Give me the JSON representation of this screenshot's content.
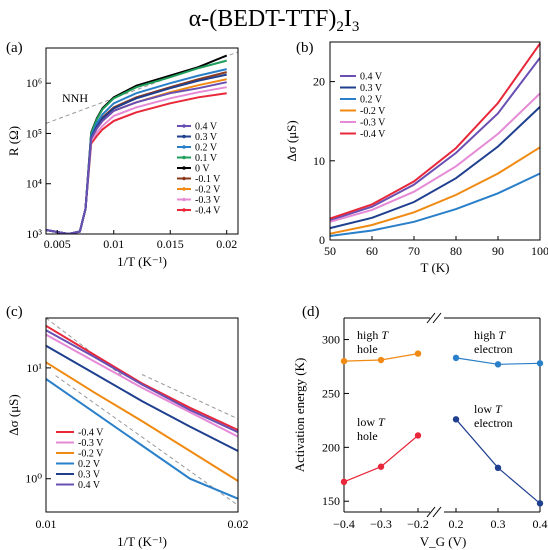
{
  "figure": {
    "title_main": "α-(BEDT-TTF)",
    "title_sub": "2",
    "title_tail": "I",
    "title_sub2": "3"
  },
  "colors": {
    "0.4 V": "#6a4fb3",
    "0.3 V": "#1f3f8f",
    "0.2 V": "#2a7fc9",
    "0.1 V": "#1e9e5a",
    "0 V": "#000000",
    "-0.1 V": "#8b3a1f",
    "-0.2 V": "#f08a12",
    "-0.3 V": "#e68ad6",
    "-0.4 V": "#e8283a",
    "fit": "#999999"
  },
  "chart_data": [
    {
      "panel": "(a)",
      "type": "line",
      "xlabel": "1/T (K⁻¹)",
      "ylabel": "R (Ω)",
      "xlim": [
        0.004,
        0.021
      ],
      "ylim_log10": [
        3,
        6.7
      ],
      "y_scale": "log",
      "xticks": [
        "0.005",
        "0.01",
        "0.015",
        "0.02"
      ],
      "yticks": [
        "10³",
        "10⁴",
        "10⁵",
        "10⁶"
      ],
      "legend": [
        "0.4 V",
        "0.3 V",
        "0.2 V",
        "0.1 V",
        "0 V",
        "-0.1 V",
        "-0.2 V",
        "-0.3 V",
        "-0.4 V"
      ],
      "annotation": "NNH",
      "series": [
        {
          "name": "0.4 V",
          "x": [
            0.004,
            0.006,
            0.007,
            0.0075,
            0.008,
            0.0085,
            0.009,
            0.01,
            0.012,
            0.015,
            0.0175,
            0.02
          ],
          "y_log10": [
            3.08,
            3.0,
            3.05,
            3.5,
            4.9,
            5.1,
            5.25,
            5.45,
            5.62,
            5.8,
            5.9,
            6.02
          ]
        },
        {
          "name": "0.3 V",
          "x": [
            0.004,
            0.006,
            0.007,
            0.0075,
            0.008,
            0.0085,
            0.009,
            0.01,
            0.012,
            0.015,
            0.0175,
            0.02
          ],
          "y_log10": [
            3.08,
            3.0,
            3.05,
            3.5,
            4.92,
            5.14,
            5.3,
            5.5,
            5.7,
            5.9,
            6.05,
            6.17
          ]
        },
        {
          "name": "0.2 V",
          "x": [
            0.004,
            0.006,
            0.007,
            0.0075,
            0.008,
            0.0085,
            0.009,
            0.01,
            0.012,
            0.015,
            0.0175,
            0.02
          ],
          "y_log10": [
            3.08,
            3.0,
            3.05,
            3.5,
            4.95,
            5.2,
            5.38,
            5.6,
            5.8,
            6.0,
            6.15,
            6.28
          ]
        },
        {
          "name": "0.1 V",
          "x": [
            0.004,
            0.006,
            0.007,
            0.0075,
            0.008,
            0.0085,
            0.009,
            0.01,
            0.012,
            0.015,
            0.0175,
            0.02
          ],
          "y_log10": [
            3.08,
            3.0,
            3.05,
            3.5,
            5.0,
            5.28,
            5.48,
            5.7,
            5.92,
            6.12,
            6.3,
            6.45
          ]
        },
        {
          "name": "0 V",
          "x": [
            0.004,
            0.006,
            0.007,
            0.0075,
            0.008,
            0.0085,
            0.009,
            0.01,
            0.012,
            0.015,
            0.0175,
            0.02
          ],
          "y_log10": [
            3.08,
            3.0,
            3.05,
            3.5,
            5.02,
            5.3,
            5.5,
            5.72,
            5.95,
            6.15,
            6.32,
            6.55
          ]
        },
        {
          "name": "-0.1 V",
          "x": [
            0.004,
            0.006,
            0.007,
            0.0075,
            0.008,
            0.0085,
            0.009,
            0.01,
            0.012,
            0.015,
            0.0175,
            0.02
          ],
          "y_log10": [
            3.08,
            3.0,
            3.05,
            3.5,
            4.95,
            5.18,
            5.32,
            5.52,
            5.72,
            5.92,
            6.08,
            6.22
          ]
        },
        {
          "name": "-0.2 V",
          "x": [
            0.004,
            0.006,
            0.007,
            0.0075,
            0.008,
            0.0085,
            0.009,
            0.01,
            0.012,
            0.015,
            0.0175,
            0.02
          ],
          "y_log10": [
            3.08,
            3.0,
            3.05,
            3.5,
            4.9,
            5.1,
            5.25,
            5.45,
            5.62,
            5.82,
            5.96,
            6.08
          ]
        },
        {
          "name": "-0.3 V",
          "x": [
            0.004,
            0.006,
            0.007,
            0.0075,
            0.008,
            0.0085,
            0.009,
            0.01,
            0.012,
            0.015,
            0.0175,
            0.02
          ],
          "y_log10": [
            3.08,
            3.0,
            3.05,
            3.5,
            4.85,
            5.02,
            5.15,
            5.35,
            5.52,
            5.7,
            5.82,
            5.92
          ]
        },
        {
          "name": "-0.4 V",
          "x": [
            0.004,
            0.006,
            0.007,
            0.0075,
            0.008,
            0.0085,
            0.009,
            0.01,
            0.012,
            0.015,
            0.0175,
            0.02
          ],
          "y_log10": [
            3.08,
            3.0,
            3.05,
            3.5,
            4.8,
            4.95,
            5.08,
            5.25,
            5.42,
            5.6,
            5.72,
            5.8
          ]
        }
      ],
      "fit_line": {
        "name": "NNH",
        "x": [
          0.004,
          0.021
        ],
        "y_log10": [
          5.2,
          6.62
        ]
      }
    },
    {
      "panel": "(b)",
      "type": "line",
      "xlabel": "T (K)",
      "ylabel": "Δσ (μS)",
      "xlim": [
        50,
        100
      ],
      "ylim": [
        0,
        25
      ],
      "xticks": [
        "50",
        "60",
        "70",
        "80",
        "90",
        "100"
      ],
      "yticks": [
        "0",
        "10",
        "20"
      ],
      "legend": [
        "0.4 V",
        "0.3 V",
        "0.2 V",
        "-0.2 V",
        "-0.3 V",
        "-0.4 V"
      ],
      "series": [
        {
          "name": "0.4 V",
          "x": [
            50,
            60,
            70,
            80,
            90,
            100
          ],
          "y": [
            2.5,
            4.2,
            7.0,
            11.0,
            16.0,
            23.0
          ]
        },
        {
          "name": "0.3 V",
          "x": [
            50,
            60,
            70,
            80,
            90,
            100
          ],
          "y": [
            1.5,
            2.8,
            4.8,
            7.8,
            11.8,
            16.8
          ]
        },
        {
          "name": "0.2 V",
          "x": [
            50,
            60,
            70,
            80,
            90,
            100
          ],
          "y": [
            0.5,
            1.2,
            2.3,
            3.9,
            5.9,
            8.4
          ]
        },
        {
          "name": "-0.2 V",
          "x": [
            50,
            60,
            70,
            80,
            90,
            100
          ],
          "y": [
            0.8,
            1.9,
            3.5,
            5.7,
            8.4,
            11.7
          ]
        },
        {
          "name": "-0.3 V",
          "x": [
            50,
            60,
            70,
            80,
            90,
            100
          ],
          "y": [
            2.3,
            3.8,
            6.1,
            9.3,
            13.4,
            18.5
          ]
        },
        {
          "name": "-0.4 V",
          "x": [
            50,
            60,
            70,
            80,
            90,
            100
          ],
          "y": [
            2.7,
            4.5,
            7.4,
            11.6,
            17.3,
            24.8
          ]
        }
      ]
    },
    {
      "panel": "(c)",
      "type": "line",
      "xlabel": "1/T (K⁻¹)",
      "ylabel": "Δσ (μS)",
      "xlim": [
        0.01,
        0.02
      ],
      "ylim_log10": [
        -0.3,
        1.45
      ],
      "y_scale": "log",
      "xticks": [
        "0.01",
        "0.02"
      ],
      "yticks": [
        "10⁰",
        "10¹"
      ],
      "legend": [
        "-0.4 V",
        "-0.3 V",
        "-0.2 V",
        "0.2 V",
        "0.3 V",
        "0.4 V"
      ],
      "series": [
        {
          "name": "-0.4 V",
          "x": [
            0.01,
            0.0125,
            0.015,
            0.0175,
            0.02
          ],
          "y_log10": [
            1.38,
            1.12,
            0.86,
            0.64,
            0.44
          ]
        },
        {
          "name": "-0.3 V",
          "x": [
            0.01,
            0.0125,
            0.015,
            0.0175,
            0.02
          ],
          "y_log10": [
            1.3,
            1.06,
            0.82,
            0.6,
            0.38
          ]
        },
        {
          "name": "-0.2 V",
          "x": [
            0.01,
            0.0125,
            0.015,
            0.0175,
            0.02
          ],
          "y_log10": [
            1.05,
            0.78,
            0.52,
            0.25,
            -0.02
          ]
        },
        {
          "name": "0.2 V",
          "x": [
            0.01,
            0.0125,
            0.015,
            0.0175,
            0.02
          ],
          "y_log10": [
            0.9,
            0.6,
            0.3,
            0.0,
            -0.18
          ]
        },
        {
          "name": "0.3 V",
          "x": [
            0.01,
            0.0125,
            0.015,
            0.0175,
            0.02
          ],
          "y_log10": [
            1.2,
            0.95,
            0.7,
            0.47,
            0.25
          ]
        },
        {
          "name": "0.4 V",
          "x": [
            0.01,
            0.0125,
            0.015,
            0.0175,
            0.02
          ],
          "y_log10": [
            1.34,
            1.1,
            0.85,
            0.62,
            0.42
          ]
        }
      ],
      "fit_lines": [
        {
          "x": [
            0.01,
            0.0145
          ],
          "y_log10": [
            1.45,
            0.86
          ]
        },
        {
          "x": [
            0.015,
            0.02
          ],
          "y_log10": [
            0.94,
            0.54
          ]
        },
        {
          "x": [
            0.0105,
            0.02
          ],
          "y_log10": [
            0.93,
            -0.24
          ]
        }
      ]
    },
    {
      "panel": "(d)",
      "type": "scatter",
      "xlabel": "V_G (V)",
      "ylabel": "Activation energy (K)",
      "ylim": [
        140,
        320
      ],
      "xticks": [
        "−0.4",
        "−0.3",
        "−0.2",
        "0.2",
        "0.3",
        "0.4"
      ],
      "yticks": [
        "150",
        "200",
        "250",
        "300"
      ],
      "series": [
        {
          "name": "high T hole",
          "x": [
            -0.4,
            -0.3,
            -0.2
          ],
          "y": [
            280,
            281,
            287
          ],
          "color": "#f08a12"
        },
        {
          "name": "low T hole",
          "x": [
            -0.4,
            -0.3,
            -0.2
          ],
          "y": [
            168,
            182,
            211
          ],
          "color": "#e8283a"
        },
        {
          "name": "high T electron",
          "x": [
            0.2,
            0.3,
            0.4
          ],
          "y": [
            283,
            277,
            278
          ],
          "color": "#2a7fc9"
        },
        {
          "name": "low T electron",
          "x": [
            0.2,
            0.3,
            0.4
          ],
          "y": [
            226,
            181,
            148
          ],
          "color": "#1f3f8f"
        }
      ],
      "labels": {
        "high_hole_1": "high",
        "high_hole_2": "hole",
        "low_hole_1": "low",
        "low_hole_2": "hole",
        "high_elec_1": "high",
        "high_elec_2": "electron",
        "low_elec_1": "low",
        "low_elec_2": "electron",
        "T": "T"
      }
    }
  ]
}
